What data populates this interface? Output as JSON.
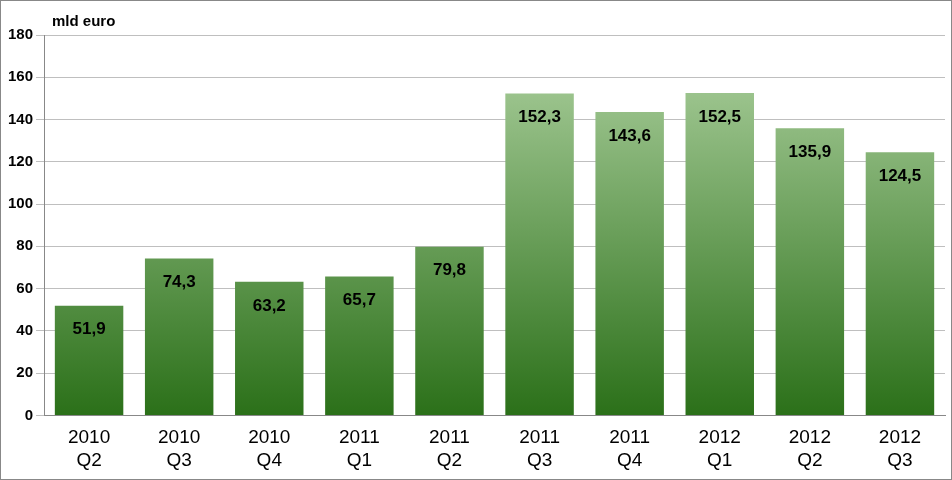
{
  "chart_data": {
    "type": "bar",
    "y_label": "mld euro",
    "categories": [
      "2010 Q2",
      "2010 Q3",
      "2010 Q4",
      "2011 Q1",
      "2011 Q2",
      "2011 Q3",
      "2011 Q4",
      "2012 Q1",
      "2012 Q2",
      "2012 Q3"
    ],
    "values": [
      51.9,
      74.3,
      63.2,
      65.7,
      79.8,
      152.3,
      143.6,
      152.5,
      135.9,
      124.5
    ],
    "value_labels": [
      "51,9",
      "74,3",
      "63,2",
      "65,7",
      "79,8",
      "152,3",
      "143,6",
      "152,5",
      "135,9",
      "124,5"
    ],
    "data_labels": true,
    "color": "#4e9a2e",
    "ylim": [
      0,
      180
    ],
    "yticks": [
      0,
      20,
      40,
      60,
      80,
      100,
      120,
      140,
      160,
      180
    ],
    "grid": true
  }
}
